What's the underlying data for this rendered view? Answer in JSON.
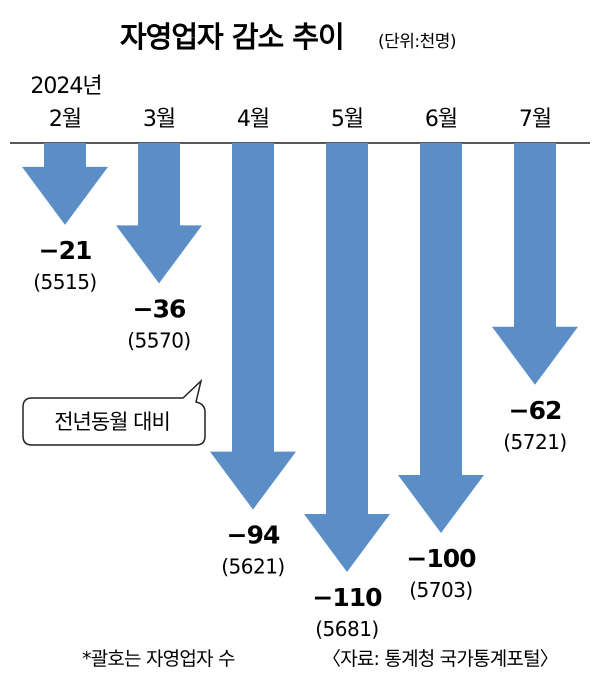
{
  "chart_data": {
    "type": "bar",
    "title": "자영업자 감소 추이",
    "unit": "(단위:천명)",
    "year_label": "2024년",
    "categories": [
      "2월",
      "3월",
      "4월",
      "5월",
      "6월",
      "7월"
    ],
    "values": [
      -21,
      -36,
      -94,
      -110,
      -100,
      -62
    ],
    "value_labels": [
      "−21",
      "−36",
      "−94",
      "−110",
      "−100",
      "−62"
    ],
    "totals": [
      "(5515)",
      "(5570)",
      "(5621)",
      "(5681)",
      "(5703)",
      "(5721)"
    ],
    "callout": "전년동월 대비",
    "footnote": "*괄호는 자영업자 수",
    "source": "〈자료: 통계청 국가통계포털〉",
    "arrow_color": "#5b8ec7"
  }
}
